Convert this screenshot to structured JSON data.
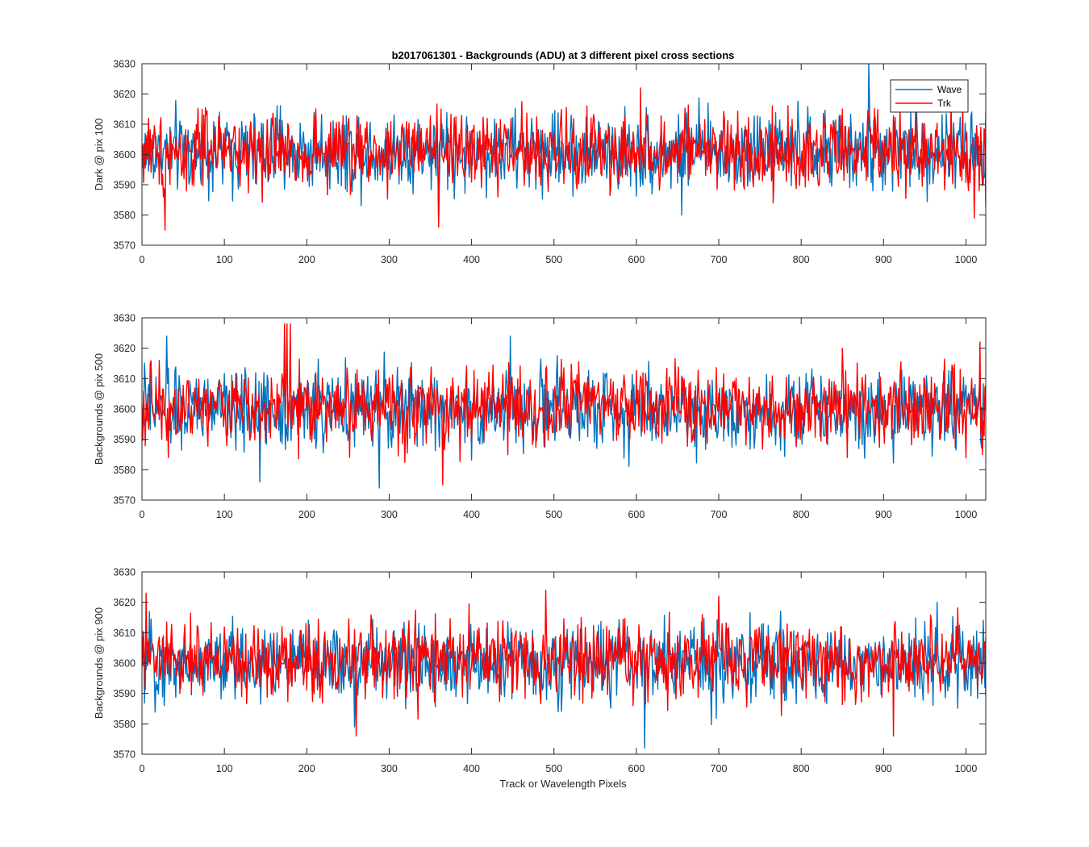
{
  "chart_data": {
    "type": "line",
    "title": "b2017061301 - Backgrounds (ADU) at 3 different pixel cross sections",
    "xlabel": "Track or Wavelength Pixels",
    "xlim": [
      0,
      1024
    ],
    "x_ticks": [
      0,
      100,
      200,
      300,
      400,
      500,
      600,
      700,
      800,
      900,
      1000
    ],
    "y_ticks": [
      3570,
      3580,
      3590,
      3600,
      3610,
      3620,
      3630
    ],
    "legend": {
      "location": "top-right",
      "entries": [
        "Wave",
        "Trk"
      ]
    },
    "colors": {
      "Wave": "#0072BD",
      "Trk": "#FF0000"
    },
    "panels": [
      {
        "ylabel": "Dark @ pix 100",
        "ylim": [
          3570,
          3630
        ],
        "series": [
          {
            "name": "Wave",
            "mean": 3601,
            "noise_sd": 6.5,
            "spikes": [
              [
                882,
                3630
              ],
              [
                360,
                3577
              ],
              [
                655,
                3580
              ],
              [
                1024,
                3614
              ]
            ]
          },
          {
            "name": "Trk",
            "mean": 3601,
            "noise_sd": 6.5,
            "spikes": [
              [
                28,
                3575
              ],
              [
                360,
                3576
              ],
              [
                605,
                3622
              ],
              [
                1010,
                3579
              ],
              [
                1020,
                3590
              ]
            ]
          }
        ]
      },
      {
        "ylabel": "Backgrounds @ pix 500",
        "ylim": [
          3570,
          3630
        ],
        "series": [
          {
            "name": "Wave",
            "mean": 3600,
            "noise_sd": 6.5,
            "spikes": [
              [
                30,
                3624
              ],
              [
                143,
                3576
              ],
              [
                288,
                3574
              ],
              [
                447,
                3624
              ]
            ]
          },
          {
            "name": "Trk",
            "mean": 3601,
            "noise_sd": 6.5,
            "spikes": [
              [
                173,
                3628
              ],
              [
                176,
                3628
              ],
              [
                180,
                3628
              ],
              [
                365,
                3575
              ],
              [
                850,
                3620
              ],
              [
                1017,
                3622
              ],
              [
                1020,
                3585
              ]
            ]
          }
        ]
      },
      {
        "ylabel": "Backgrounds @ pix 900",
        "ylim": [
          3570,
          3630
        ],
        "series": [
          {
            "name": "Wave",
            "mean": 3600,
            "noise_sd": 6.5,
            "spikes": [
              [
                610,
                3572
              ],
              [
                965,
                3620
              ],
              [
                258,
                3579
              ]
            ]
          },
          {
            "name": "Trk",
            "mean": 3601,
            "noise_sd": 6.5,
            "spikes": [
              [
                5,
                3623
              ],
              [
                490,
                3624
              ],
              [
                700,
                3622
              ],
              [
                260,
                3576
              ],
              [
                912,
                3576
              ]
            ]
          }
        ]
      }
    ]
  }
}
